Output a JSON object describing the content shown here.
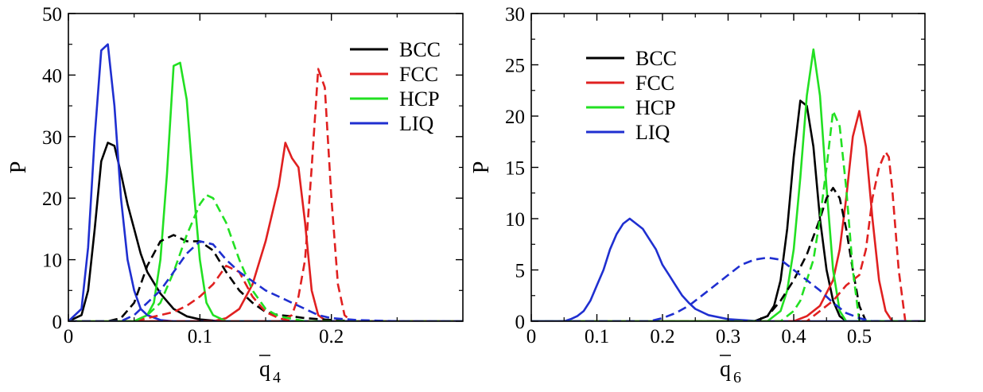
{
  "chart_data": [
    {
      "type": "line",
      "xlabel": "q̄4",
      "xlabel_main": "q",
      "xlabel_sub": "4",
      "ylabel": "P",
      "xlim": [
        0,
        0.3
      ],
      "ylim": [
        0,
        50
      ],
      "xticks": [
        0,
        0.1,
        0.2
      ],
      "xtick_labels": [
        "0",
        "0.1",
        "0.2"
      ],
      "yticks": [
        0,
        10,
        20,
        30,
        40,
        50
      ],
      "ytick_labels": [
        "0",
        "10",
        "20",
        "30",
        "40",
        "50"
      ],
      "grid": false,
      "legend_position": "top-right",
      "legend": [
        {
          "label": "BCC",
          "color": "#000000"
        },
        {
          "label": "FCC",
          "color": "#e02020"
        },
        {
          "label": "HCP",
          "color": "#22e022"
        },
        {
          "label": "LIQ",
          "color": "#1f2fd0"
        }
      ],
      "series": [
        {
          "name": "BCC",
          "color": "#000000",
          "dashed": false,
          "x": [
            0,
            0.01,
            0.015,
            0.02,
            0.025,
            0.03,
            0.035,
            0.04,
            0.045,
            0.05,
            0.055,
            0.06,
            0.07,
            0.08,
            0.09,
            0.1,
            0.11,
            0.12,
            0.3
          ],
          "y": [
            0,
            1,
            5,
            15,
            26,
            29,
            28.5,
            24,
            19,
            15,
            11,
            8,
            4.5,
            2,
            0.8,
            0.3,
            0.1,
            0,
            0
          ]
        },
        {
          "name": "FCC",
          "color": "#e02020",
          "dashed": false,
          "x": [
            0,
            0.11,
            0.12,
            0.13,
            0.14,
            0.15,
            0.16,
            0.165,
            0.17,
            0.175,
            0.18,
            0.185,
            0.19,
            0.195,
            0.2,
            0.3
          ],
          "y": [
            0,
            0,
            0.5,
            2,
            6,
            13,
            22,
            29,
            26.5,
            25,
            16,
            5,
            1,
            0.2,
            0,
            0
          ]
        },
        {
          "name": "HCP",
          "color": "#22e022",
          "dashed": false,
          "x": [
            0,
            0.05,
            0.06,
            0.065,
            0.07,
            0.075,
            0.08,
            0.085,
            0.09,
            0.095,
            0.1,
            0.105,
            0.11,
            0.12,
            0.3
          ],
          "y": [
            0,
            0,
            1,
            3,
            10,
            24,
            41.5,
            42,
            36,
            22,
            10,
            3,
            1,
            0,
            0
          ]
        },
        {
          "name": "LIQ",
          "color": "#1f2fd0",
          "dashed": false,
          "x": [
            0,
            0.01,
            0.015,
            0.02,
            0.025,
            0.03,
            0.035,
            0.04,
            0.045,
            0.05,
            0.055,
            0.06,
            0.07,
            0.08,
            0.3
          ],
          "y": [
            0,
            2,
            12,
            30,
            44,
            45,
            35,
            20,
            10,
            5,
            2,
            1,
            0.2,
            0,
            0
          ]
        },
        {
          "name": "BCC",
          "color": "#000000",
          "dashed": true,
          "x": [
            0,
            0.03,
            0.04,
            0.05,
            0.06,
            0.07,
            0.08,
            0.09,
            0.1,
            0.11,
            0.12,
            0.13,
            0.14,
            0.15,
            0.16,
            0.17,
            0.18,
            0.2,
            0.22,
            0.3
          ],
          "y": [
            0,
            0,
            0.5,
            3,
            9,
            13,
            14,
            13,
            13,
            11.5,
            8,
            5,
            3,
            1.5,
            1,
            0.8,
            0.5,
            0.2,
            0,
            0
          ]
        },
        {
          "name": "FCC",
          "color": "#e02020",
          "dashed": true,
          "x": [
            0,
            0.16,
            0.17,
            0.175,
            0.18,
            0.185,
            0.19,
            0.195,
            0.2,
            0.205,
            0.21,
            0.215,
            0.3
          ],
          "y": [
            0,
            0,
            1,
            4,
            10,
            25,
            41,
            38,
            20,
            6,
            1,
            0,
            0
          ]
        },
        {
          "name": "FCC",
          "color": "#e02020",
          "dashed": true,
          "x": [
            0,
            0.05,
            0.06,
            0.07,
            0.08,
            0.09,
            0.1,
            0.11,
            0.12,
            0.13,
            0.14,
            0.15,
            0.16,
            0.17,
            0.3
          ],
          "y": [
            0,
            0,
            0.5,
            1,
            1.5,
            2.5,
            4,
            6,
            9,
            8,
            4,
            1.5,
            0.5,
            0,
            0
          ]
        },
        {
          "name": "HCP",
          "color": "#22e022",
          "dashed": true,
          "x": [
            0,
            0.05,
            0.06,
            0.07,
            0.08,
            0.09,
            0.1,
            0.105,
            0.11,
            0.12,
            0.13,
            0.14,
            0.15,
            0.16,
            0.18,
            0.3
          ],
          "y": [
            0,
            0,
            1,
            3,
            8,
            14,
            19,
            20.5,
            20,
            16,
            10,
            5,
            2,
            0.8,
            0,
            0
          ]
        },
        {
          "name": "LIQ",
          "color": "#1f2fd0",
          "dashed": true,
          "x": [
            0,
            0.04,
            0.05,
            0.06,
            0.07,
            0.08,
            0.09,
            0.1,
            0.11,
            0.12,
            0.13,
            0.14,
            0.15,
            0.16,
            0.17,
            0.18,
            0.19,
            0.2,
            0.22,
            0.25,
            0.3
          ],
          "y": [
            0,
            0,
            1,
            3,
            5,
            8,
            11,
            13,
            12.5,
            10,
            8,
            6.5,
            5,
            4,
            3,
            2,
            1,
            0.5,
            0.2,
            0,
            0
          ]
        }
      ]
    },
    {
      "type": "line",
      "xlabel": "q̄6",
      "xlabel_main": "q",
      "xlabel_sub": "6",
      "ylabel": "P",
      "xlim": [
        0,
        0.6
      ],
      "ylim": [
        0,
        30
      ],
      "xticks": [
        0,
        0.1,
        0.2,
        0.3,
        0.4,
        0.5
      ],
      "xtick_labels": [
        "0",
        "0.1",
        "0.2",
        "0.3",
        "0.4",
        "0.5"
      ],
      "yticks": [
        0,
        5,
        10,
        15,
        20,
        25,
        30
      ],
      "ytick_labels": [
        "0",
        "5",
        "10",
        "15",
        "20",
        "25",
        "30"
      ],
      "grid": false,
      "legend_position": "top-left",
      "legend": [
        {
          "label": "BCC",
          "color": "#000000"
        },
        {
          "label": "FCC",
          "color": "#e02020"
        },
        {
          "label": "HCP",
          "color": "#22e022"
        },
        {
          "label": "LIQ",
          "color": "#1f2fd0"
        }
      ],
      "series": [
        {
          "name": "BCC",
          "color": "#000000",
          "dashed": false,
          "x": [
            0,
            0.34,
            0.36,
            0.37,
            0.38,
            0.39,
            0.4,
            0.41,
            0.42,
            0.43,
            0.44,
            0.45,
            0.46,
            0.47,
            0.48,
            0.6
          ],
          "y": [
            0,
            0,
            0.5,
            1.5,
            4,
            9,
            16,
            21.5,
            21,
            17,
            10,
            5,
            2,
            0.5,
            0,
            0
          ]
        },
        {
          "name": "FCC",
          "color": "#e02020",
          "dashed": false,
          "x": [
            0,
            0.4,
            0.42,
            0.44,
            0.46,
            0.47,
            0.48,
            0.49,
            0.5,
            0.51,
            0.52,
            0.53,
            0.54,
            0.55,
            0.6
          ],
          "y": [
            0,
            0,
            0.5,
            1.5,
            4,
            7,
            12,
            18,
            20.5,
            17,
            10,
            4,
            1,
            0,
            0
          ]
        },
        {
          "name": "HCP",
          "color": "#22e022",
          "dashed": false,
          "x": [
            0,
            0.36,
            0.38,
            0.39,
            0.4,
            0.41,
            0.42,
            0.43,
            0.44,
            0.45,
            0.46,
            0.47,
            0.48,
            0.6
          ],
          "y": [
            0,
            0,
            1,
            3,
            7,
            14,
            22,
            26.5,
            22,
            13,
            5,
            1,
            0,
            0
          ]
        },
        {
          "name": "LIQ",
          "color": "#1f2fd0",
          "dashed": false,
          "x": [
            0,
            0.05,
            0.06,
            0.07,
            0.08,
            0.09,
            0.1,
            0.11,
            0.12,
            0.13,
            0.14,
            0.15,
            0.16,
            0.17,
            0.18,
            0.19,
            0.2,
            0.21,
            0.22,
            0.23,
            0.24,
            0.25,
            0.27,
            0.3,
            0.35,
            0.6
          ],
          "y": [
            0,
            0,
            0.2,
            0.5,
            1,
            2,
            3.5,
            5,
            7,
            8.5,
            9.5,
            10,
            9.5,
            9,
            8,
            7,
            5.5,
            4.5,
            3.5,
            2.5,
            1.8,
            1.2,
            0.6,
            0.2,
            0,
            0
          ]
        },
        {
          "name": "BCC",
          "color": "#000000",
          "dashed": true,
          "x": [
            0,
            0.34,
            0.36,
            0.38,
            0.4,
            0.42,
            0.44,
            0.45,
            0.46,
            0.47,
            0.48,
            0.49,
            0.5,
            0.51,
            0.6
          ],
          "y": [
            0,
            0,
            0.5,
            2,
            4,
            6.5,
            10,
            12,
            13,
            12,
            9,
            5,
            1.5,
            0,
            0
          ]
        },
        {
          "name": "FCC",
          "color": "#e02020",
          "dashed": true,
          "x": [
            0,
            0.42,
            0.44,
            0.46,
            0.48,
            0.49,
            0.5,
            0.51,
            0.52,
            0.53,
            0.54,
            0.545,
            0.55,
            0.56,
            0.57,
            0.6
          ],
          "y": [
            0,
            0,
            1,
            2,
            3.5,
            4,
            4.5,
            7,
            12,
            15,
            16.5,
            16,
            13,
            5,
            0,
            0
          ]
        },
        {
          "name": "HCP",
          "color": "#22e022",
          "dashed": true,
          "x": [
            0,
            0.38,
            0.4,
            0.41,
            0.42,
            0.43,
            0.44,
            0.45,
            0.46,
            0.47,
            0.48,
            0.49,
            0.5,
            0.6
          ],
          "y": [
            0,
            0,
            1,
            2,
            4,
            6,
            10,
            15,
            20.5,
            19,
            13,
            5,
            0,
            0
          ]
        },
        {
          "name": "LIQ",
          "color": "#1f2fd0",
          "dashed": true,
          "x": [
            0,
            0.18,
            0.2,
            0.22,
            0.24,
            0.26,
            0.28,
            0.3,
            0.32,
            0.34,
            0.36,
            0.38,
            0.4,
            0.42,
            0.44,
            0.46,
            0.48,
            0.5,
            0.52,
            0.6
          ],
          "y": [
            0,
            0,
            0.3,
            0.8,
            1.5,
            2.5,
            3.5,
            4.5,
            5.5,
            6,
            6.2,
            6,
            5,
            4,
            3,
            1.8,
            0.8,
            0.3,
            0,
            0
          ]
        }
      ]
    }
  ]
}
